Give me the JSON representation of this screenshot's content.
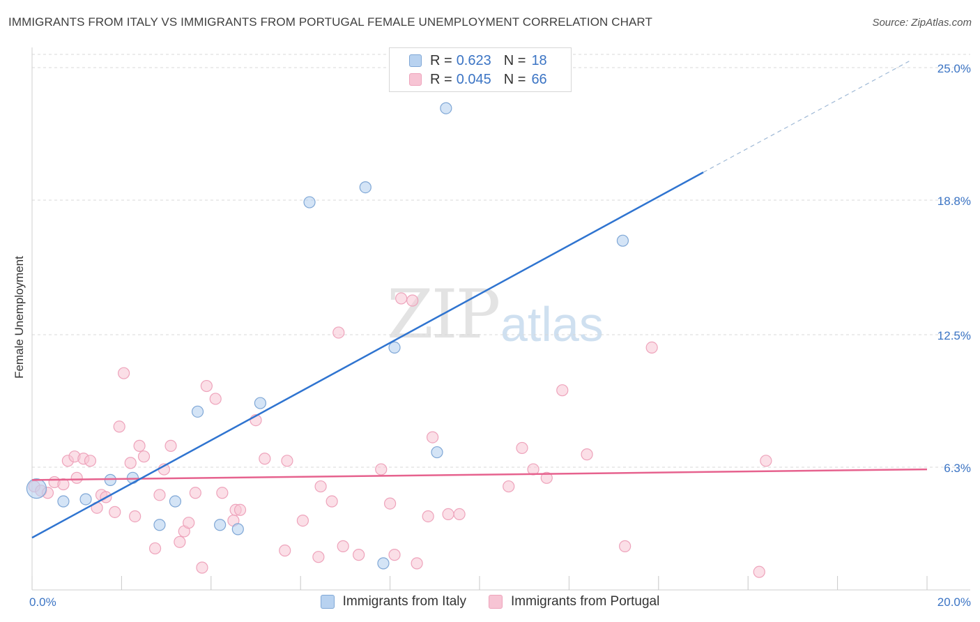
{
  "chart_data": {
    "type": "scatter",
    "title": "IMMIGRANTS FROM ITALY VS IMMIGRANTS FROM PORTUGAL FEMALE UNEMPLOYMENT CORRELATION CHART",
    "source": "Source: ZipAtlas.com",
    "xlabel": "",
    "ylabel": "Female Unemployment",
    "xlim": [
      0,
      20
    ],
    "ylim": [
      0,
      25.5
    ],
    "x_tick_labels": [
      "0.0%",
      "20.0%"
    ],
    "y_ticks": [
      {
        "value": 25.0,
        "label": "25.0%"
      },
      {
        "value": 18.8,
        "label": "18.8%"
      },
      {
        "value": 12.5,
        "label": "12.5%"
      },
      {
        "value": 6.3,
        "label": "6.3%"
      }
    ],
    "watermark": {
      "zip": "ZIP",
      "atlas": "atlas"
    },
    "legend": [
      {
        "name": "Immigrants from Italy",
        "r_label": "R =",
        "r": "0.623",
        "n_label": "N =",
        "n": "18"
      },
      {
        "name": "Immigrants from Portugal",
        "r_label": "R =",
        "r": "0.045",
        "n_label": "N =",
        "n": "66"
      }
    ],
    "colors": {
      "italy_fill": "#b8d2f0",
      "italy_stroke": "#7fa7d6",
      "italy_line": "#2f74d0",
      "portugal_fill": "#f7c4d4",
      "portugal_stroke": "#eea3bb",
      "portugal_line": "#e6628e",
      "grid": "#d9d9d9",
      "tick_label": "#3b74c4"
    },
    "series": [
      {
        "name": "Immigrants from Italy",
        "points": [
          [
            0.1,
            5.3
          ],
          [
            0.7,
            4.7
          ],
          [
            1.2,
            4.8
          ],
          [
            1.75,
            5.7
          ],
          [
            2.25,
            5.8
          ],
          [
            2.85,
            3.6
          ],
          [
            3.2,
            4.7
          ],
          [
            3.7,
            8.9
          ],
          [
            4.2,
            3.6
          ],
          [
            4.6,
            3.4
          ],
          [
            5.1,
            9.3
          ],
          [
            6.2,
            18.7
          ],
          [
            7.45,
            19.4
          ],
          [
            7.85,
            1.8
          ],
          [
            8.1,
            11.9
          ],
          [
            9.05,
            7.0
          ],
          [
            9.25,
            23.1
          ],
          [
            13.2,
            16.9
          ]
        ],
        "trend": {
          "x_start": 0,
          "y_start": 3.0,
          "x_solid_end": 15.0,
          "y_solid_end": 20.1,
          "x_dash_end": 19.6,
          "y_dash_end": 25.3
        }
      },
      {
        "name": "Immigrants from Portugal",
        "points": [
          [
            0.05,
            5.4
          ],
          [
            0.2,
            5.2
          ],
          [
            0.35,
            5.1
          ],
          [
            0.5,
            5.6
          ],
          [
            0.7,
            5.5
          ],
          [
            0.8,
            6.6
          ],
          [
            0.95,
            6.8
          ],
          [
            1.0,
            5.8
          ],
          [
            1.15,
            6.7
          ],
          [
            1.3,
            6.6
          ],
          [
            1.45,
            4.4
          ],
          [
            1.55,
            5.0
          ],
          [
            1.65,
            4.9
          ],
          [
            1.85,
            4.2
          ],
          [
            1.95,
            8.2
          ],
          [
            2.05,
            10.7
          ],
          [
            2.2,
            6.5
          ],
          [
            2.3,
            4.0
          ],
          [
            2.4,
            7.3
          ],
          [
            2.5,
            6.8
          ],
          [
            2.75,
            2.5
          ],
          [
            2.85,
            5.0
          ],
          [
            2.95,
            6.2
          ],
          [
            3.1,
            7.3
          ],
          [
            3.3,
            2.8
          ],
          [
            3.4,
            3.3
          ],
          [
            3.5,
            3.7
          ],
          [
            3.65,
            5.1
          ],
          [
            3.8,
            1.6
          ],
          [
            3.9,
            10.1
          ],
          [
            4.1,
            9.5
          ],
          [
            4.25,
            5.1
          ],
          [
            4.5,
            3.8
          ],
          [
            4.55,
            4.3
          ],
          [
            4.65,
            4.3
          ],
          [
            5.0,
            8.5
          ],
          [
            5.2,
            6.7
          ],
          [
            5.65,
            2.4
          ],
          [
            5.7,
            6.6
          ],
          [
            6.05,
            3.8
          ],
          [
            6.4,
            2.1
          ],
          [
            6.45,
            5.4
          ],
          [
            6.7,
            4.7
          ],
          [
            6.85,
            12.6
          ],
          [
            6.95,
            2.6
          ],
          [
            7.3,
            2.2
          ],
          [
            7.8,
            6.2
          ],
          [
            8.0,
            4.6
          ],
          [
            8.1,
            2.2
          ],
          [
            8.25,
            14.2
          ],
          [
            8.5,
            14.1
          ],
          [
            8.6,
            1.8
          ],
          [
            8.85,
            4.0
          ],
          [
            8.95,
            7.7
          ],
          [
            9.3,
            4.1
          ],
          [
            9.55,
            4.1
          ],
          [
            10.65,
            5.4
          ],
          [
            10.95,
            7.2
          ],
          [
            11.2,
            6.2
          ],
          [
            11.5,
            5.8
          ],
          [
            11.85,
            9.9
          ],
          [
            12.4,
            6.9
          ],
          [
            13.25,
            2.6
          ],
          [
            13.85,
            11.9
          ],
          [
            16.25,
            1.4
          ],
          [
            16.4,
            6.6
          ]
        ],
        "trend": {
          "x_start": 0,
          "y_start": 5.7,
          "x_end": 20,
          "y_end": 6.2
        }
      }
    ]
  }
}
